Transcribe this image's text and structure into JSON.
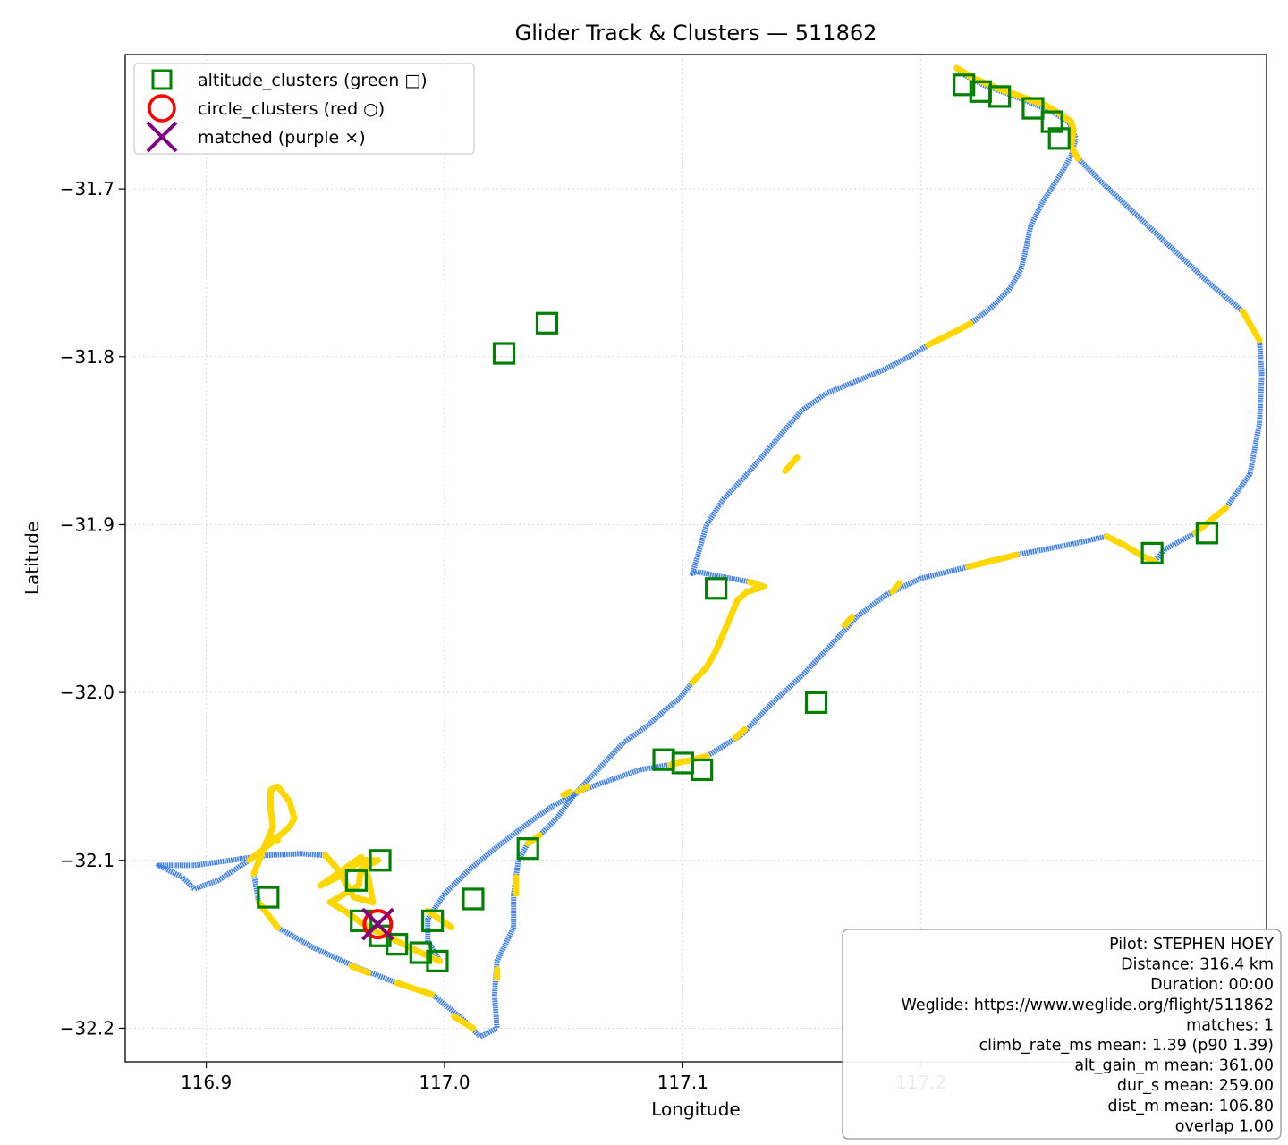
{
  "chart_data": {
    "type": "line",
    "title": "Glider Track & Clusters — 511862",
    "xlabel": "Longitude",
    "ylabel": "Latitude",
    "xlim": [
      116.866,
      117.345
    ],
    "ylim": [
      -32.22,
      -31.62
    ],
    "xticks": [
      116.9,
      117.0,
      117.1,
      117.2
    ],
    "xtick_labels": [
      "116.9",
      "117.0",
      "117.1",
      "117.2"
    ],
    "yticks": [
      -31.7,
      -31.8,
      -31.9,
      -32.0,
      -32.1,
      -32.2
    ],
    "ytick_labels": [
      "−31.7",
      "−31.8",
      "−31.9",
      "−32.0",
      "−32.1",
      "−32.2"
    ],
    "grid": true,
    "legend_position": "top-left",
    "colors": {
      "track_cruise": "#3b7ded",
      "track_climb": "#ffd700",
      "altitude_clusters": "#008000",
      "circle_clusters": "#ff0000",
      "matched": "#800080"
    },
    "legend": [
      {
        "label": "altitude_clusters (green □)",
        "marker": "square"
      },
      {
        "label": "circle_clusters (red ○)",
        "marker": "circle"
      },
      {
        "label": "matched (purple ×)",
        "marker": "x"
      }
    ],
    "track": [
      [
        117.015,
        -32.205
      ],
      [
        117.022,
        -32.2
      ],
      [
        117.021,
        -32.18
      ],
      [
        117.022,
        -32.16
      ],
      [
        117.029,
        -32.14
      ],
      [
        117.029,
        -32.12
      ],
      [
        117.031,
        -32.1
      ],
      [
        117.035,
        -32.09
      ],
      [
        117.04,
        -32.085
      ],
      [
        117.047,
        -32.075
      ],
      [
        117.055,
        -32.06
      ],
      [
        117.065,
        -32.045
      ],
      [
        117.075,
        -32.03
      ],
      [
        117.085,
        -32.02
      ],
      [
        117.093,
        -32.01
      ],
      [
        117.099,
        -32.003
      ],
      [
        117.104,
        -31.994
      ],
      [
        117.11,
        -31.985
      ],
      [
        117.114,
        -31.975
      ],
      [
        117.117,
        -31.965
      ],
      [
        117.12,
        -31.955
      ],
      [
        117.123,
        -31.945
      ],
      [
        117.127,
        -31.94
      ],
      [
        117.134,
        -31.937
      ],
      [
        117.128,
        -31.934
      ],
      [
        117.116,
        -31.931
      ],
      [
        117.106,
        -31.928
      ],
      [
        117.104,
        -31.929
      ],
      [
        117.106,
        -31.92
      ],
      [
        117.11,
        -31.9
      ],
      [
        117.117,
        -31.885
      ],
      [
        117.125,
        -31.873
      ],
      [
        117.133,
        -31.86
      ],
      [
        117.142,
        -31.845
      ],
      [
        117.15,
        -31.832
      ],
      [
        117.16,
        -31.822
      ],
      [
        117.172,
        -31.815
      ],
      [
        117.184,
        -31.808
      ],
      [
        117.195,
        -31.8
      ],
      [
        117.203,
        -31.793
      ],
      [
        117.213,
        -31.786
      ],
      [
        117.221,
        -31.78
      ],
      [
        117.23,
        -31.77
      ],
      [
        117.237,
        -31.76
      ],
      [
        117.242,
        -31.748
      ],
      [
        117.244,
        -31.736
      ],
      [
        117.246,
        -31.722
      ],
      [
        117.251,
        -31.708
      ],
      [
        117.256,
        -31.697
      ],
      [
        117.26,
        -31.688
      ],
      [
        117.263,
        -31.68
      ],
      [
        117.265,
        -31.67
      ],
      [
        117.262,
        -31.66
      ],
      [
        117.255,
        -31.654
      ],
      [
        117.245,
        -31.648
      ],
      [
        117.236,
        -31.643
      ],
      [
        117.226,
        -31.638
      ],
      [
        117.218,
        -31.632
      ],
      [
        117.215,
        -31.628
      ],
      [
        117.222,
        -31.634
      ],
      [
        117.232,
        -31.64
      ],
      [
        117.242,
        -31.645
      ],
      [
        117.252,
        -31.65
      ],
      [
        117.258,
        -31.655
      ],
      [
        117.263,
        -31.66
      ],
      [
        117.264,
        -31.665
      ],
      [
        117.263,
        -31.675
      ],
      [
        117.266,
        -31.682
      ],
      [
        117.275,
        -31.695
      ],
      [
        117.29,
        -31.715
      ],
      [
        117.305,
        -31.735
      ],
      [
        117.32,
        -31.755
      ],
      [
        117.335,
        -31.773
      ],
      [
        117.342,
        -31.79
      ],
      [
        117.343,
        -31.81
      ],
      [
        117.342,
        -31.84
      ],
      [
        117.338,
        -31.87
      ],
      [
        117.328,
        -31.89
      ],
      [
        117.315,
        -31.905
      ],
      [
        117.302,
        -31.915
      ],
      [
        117.298,
        -31.922
      ],
      [
        117.292,
        -31.918
      ],
      [
        117.285,
        -31.912
      ],
      [
        117.278,
        -31.907
      ],
      [
        117.262,
        -31.912
      ],
      [
        117.24,
        -31.918
      ],
      [
        117.22,
        -31.925
      ],
      [
        117.2,
        -31.932
      ],
      [
        117.185,
        -31.942
      ],
      [
        117.173,
        -31.955
      ],
      [
        117.162,
        -31.972
      ],
      [
        117.15,
        -31.99
      ],
      [
        117.137,
        -32.007
      ],
      [
        117.125,
        -32.025
      ],
      [
        117.11,
        -32.038
      ],
      [
        117.095,
        -32.043
      ],
      [
        117.082,
        -32.046
      ],
      [
        117.07,
        -32.052
      ],
      [
        117.058,
        -32.058
      ],
      [
        117.045,
        -32.068
      ],
      [
        117.033,
        -32.08
      ],
      [
        117.022,
        -32.092
      ],
      [
        117.01,
        -32.106
      ],
      [
        117.0,
        -32.12
      ],
      [
        116.993,
        -32.135
      ],
      [
        116.993,
        -32.148
      ],
      [
        116.998,
        -32.16
      ],
      [
        116.99,
        -32.155
      ],
      [
        116.98,
        -32.148
      ],
      [
        116.968,
        -32.14
      ],
      [
        116.958,
        -32.13
      ],
      [
        116.952,
        -32.125
      ],
      [
        116.958,
        -32.12
      ],
      [
        116.964,
        -32.115
      ],
      [
        116.965,
        -32.105
      ],
      [
        116.972,
        -32.1
      ],
      [
        116.965,
        -32.1
      ],
      [
        116.955,
        -32.11
      ],
      [
        116.948,
        -32.115
      ],
      [
        116.953,
        -32.11
      ],
      [
        116.96,
        -32.103
      ],
      [
        116.965,
        -32.098
      ],
      [
        116.968,
        -32.11
      ],
      [
        116.97,
        -32.125
      ],
      [
        116.962,
        -32.122
      ],
      [
        116.955,
        -32.105
      ],
      [
        116.95,
        -32.097
      ],
      [
        116.94,
        -32.096
      ],
      [
        116.925,
        -32.097
      ],
      [
        116.91,
        -32.1
      ],
      [
        116.895,
        -32.103
      ],
      [
        116.88,
        -32.103
      ],
      [
        116.89,
        -32.11
      ],
      [
        116.895,
        -32.117
      ],
      [
        116.905,
        -32.112
      ],
      [
        116.918,
        -32.1
      ],
      [
        116.927,
        -32.09
      ],
      [
        116.935,
        -32.08
      ],
      [
        116.937,
        -32.075
      ],
      [
        116.935,
        -32.065
      ],
      [
        116.93,
        -32.056
      ],
      [
        116.927,
        -32.058
      ],
      [
        116.927,
        -32.07
      ],
      [
        116.928,
        -32.08
      ],
      [
        116.925,
        -32.09
      ],
      [
        116.92,
        -32.108
      ],
      [
        116.922,
        -32.125
      ],
      [
        116.93,
        -32.14
      ],
      [
        116.945,
        -32.152
      ],
      [
        116.962,
        -32.163
      ],
      [
        116.98,
        -32.173
      ],
      [
        116.995,
        -32.18
      ],
      [
        117.008,
        -32.195
      ],
      [
        117.015,
        -32.205
      ]
    ],
    "climb_segments": [
      [
        117.104,
        -31.994,
        117.134,
        -31.928
      ],
      [
        117.215,
        -31.628,
        117.265,
        -31.685
      ],
      [
        117.272,
        -31.908,
        117.296,
        -31.922
      ],
      [
        117.088,
        -32.042,
        117.11,
        -32.046
      ],
      [
        116.952,
        -32.116,
        116.998,
        -32.16
      ],
      [
        116.948,
        -32.1,
        116.968,
        -32.115
      ],
      [
        116.993,
        -32.13,
        117.003,
        -32.14
      ],
      [
        117.031,
        -32.093,
        117.041,
        -32.08
      ],
      [
        117.207,
        -31.795,
        117.222,
        -31.784
      ],
      [
        117.143,
        -31.868,
        117.148,
        -31.86
      ],
      [
        117.332,
        -31.91,
        117.338,
        -31.9
      ],
      [
        117.225,
        -31.927,
        117.232,
        -31.924
      ],
      [
        117.188,
        -31.94,
        117.191,
        -31.935
      ],
      [
        117.168,
        -31.96,
        117.171,
        -31.955
      ],
      [
        117.122,
        -32.027,
        117.126,
        -32.022
      ],
      [
        117.056,
        -32.059,
        117.06,
        -32.056
      ],
      [
        117.05,
        -32.061,
        117.053,
        -32.059
      ],
      [
        117.03,
        -32.11,
        117.03,
        -32.12
      ],
      [
        117.022,
        -32.165,
        117.022,
        -32.17
      ],
      [
        117.004,
        -32.193,
        117.012,
        -32.2
      ],
      [
        116.985,
        -32.175,
        116.99,
        -32.178
      ],
      [
        116.961,
        -32.163,
        116.968,
        -32.167
      ],
      [
        116.925,
        -32.125,
        116.93,
        -32.132
      ],
      [
        116.918,
        -32.102,
        116.92,
        -32.108
      ],
      [
        116.928,
        -32.086,
        116.93,
        -32.088
      ],
      [
        117.345,
        -31.775,
        117.348,
        -31.78
      ]
    ],
    "altitude_clusters": [
      [
        117.218,
        -31.638
      ],
      [
        117.225,
        -31.642
      ],
      [
        117.233,
        -31.645
      ],
      [
        117.247,
        -31.652
      ],
      [
        117.255,
        -31.66
      ],
      [
        117.258,
        -31.67
      ],
      [
        117.043,
        -31.78
      ],
      [
        117.025,
        -31.798
      ],
      [
        117.297,
        -31.917
      ],
      [
        117.32,
        -31.905
      ],
      [
        117.114,
        -31.938
      ],
      [
        117.092,
        -32.04
      ],
      [
        117.1,
        -32.042
      ],
      [
        117.108,
        -32.046
      ],
      [
        117.156,
        -32.006
      ],
      [
        117.035,
        -32.093
      ],
      [
        117.012,
        -32.123
      ],
      [
        116.995,
        -32.136
      ],
      [
        116.997,
        -32.16
      ],
      [
        116.99,
        -32.155
      ],
      [
        116.98,
        -32.15
      ],
      [
        116.973,
        -32.145
      ],
      [
        116.965,
        -32.136
      ],
      [
        116.973,
        -32.1
      ],
      [
        116.963,
        -32.112
      ],
      [
        116.926,
        -32.122
      ]
    ],
    "circle_clusters": [
      [
        116.972,
        -32.138
      ]
    ],
    "matched": [
      [
        116.972,
        -32.138
      ]
    ],
    "info_lines": [
      "Pilot: STEPHEN HOEY",
      "Distance: 316.4 km",
      "Duration: 00:00",
      "Weglide: https://www.weglide.org/flight/511862",
      "matches: 1",
      "climb_rate_ms mean: 1.39 (p90 1.39)",
      "alt_gain_m mean: 361.00",
      "dur_s mean: 259.00",
      "dist_m mean: 106.80",
      "overlap 1.00"
    ]
  }
}
